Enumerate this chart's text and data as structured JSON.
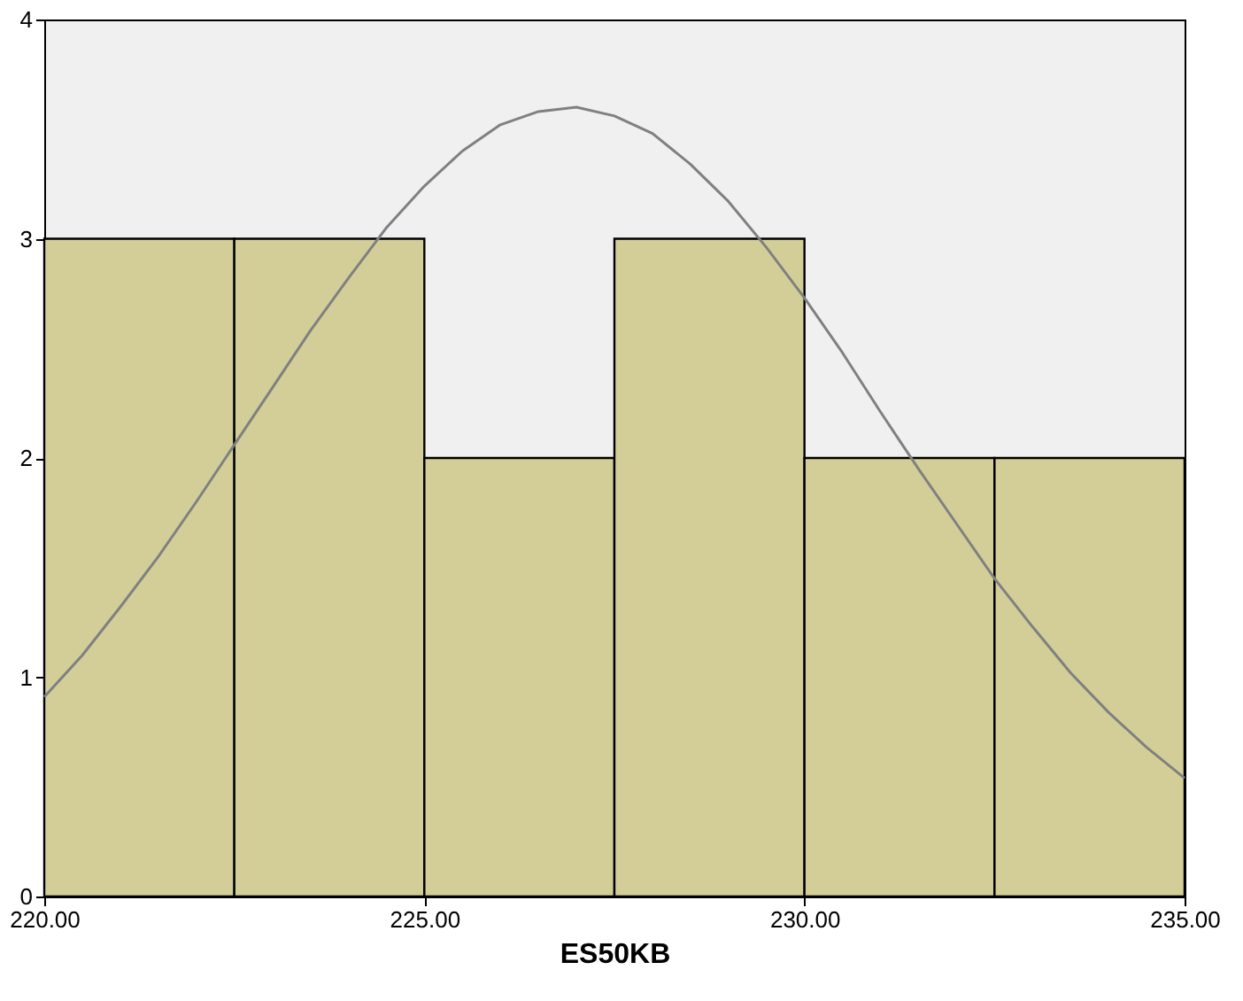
{
  "chart_data": {
    "type": "histogram",
    "xlabel": "ES50KB",
    "bins": [
      220,
      222.5,
      225,
      227.5,
      230,
      232.5,
      235
    ],
    "values": [
      3,
      3,
      2,
      3,
      2,
      2
    ],
    "color": "#d3ce98",
    "series": [
      {
        "type": "line",
        "color": "#808080",
        "x": [
          220,
          220.5,
          221,
          221.5,
          222,
          222.5,
          223,
          223.5,
          224,
          224.5,
          225,
          225.5,
          226,
          226.5,
          227,
          227.5,
          228,
          228.5,
          229,
          229.5,
          230,
          230.5,
          231,
          231.5,
          232,
          232.5,
          233,
          233.5,
          234,
          234.5,
          235
        ],
        "values": [
          0.91,
          1.1,
          1.32,
          1.55,
          1.8,
          2.06,
          2.32,
          2.58,
          2.82,
          3.05,
          3.24,
          3.4,
          3.52,
          3.58,
          3.6,
          3.56,
          3.48,
          3.34,
          3.17,
          2.96,
          2.73,
          2.48,
          2.21,
          1.95,
          1.7,
          1.45,
          1.23,
          1.02,
          0.84,
          0.68,
          0.54
        ]
      }
    ],
    "xlim": [
      220,
      235
    ],
    "xticks": [
      {
        "value": 220,
        "label": "220.00"
      },
      {
        "value": 225,
        "label": "225.00"
      },
      {
        "value": 230,
        "label": "230.00"
      },
      {
        "value": 235,
        "label": "235.00"
      }
    ],
    "ylim": [
      0,
      4
    ],
    "yticks": [
      0,
      1,
      2,
      3,
      4
    ]
  }
}
